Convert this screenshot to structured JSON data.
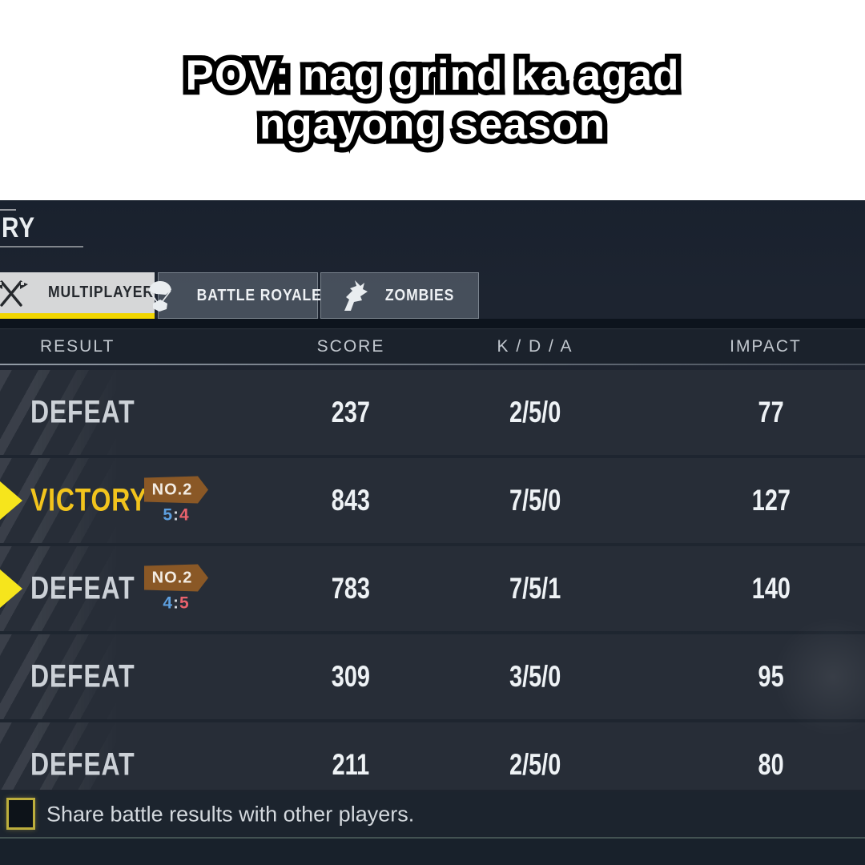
{
  "meme": {
    "line1": "POV: nag grind ka agad",
    "line2": "ngayong season"
  },
  "screen": {
    "partial_title": "RY",
    "tabs": [
      {
        "label": "MULTIPLAYER",
        "icon": "crossed-flags-icon",
        "selected": true
      },
      {
        "label": "BATTLE ROYALE",
        "icon": "parachute-crate-icon",
        "selected": false
      },
      {
        "label": "ZOMBIES",
        "icon": "zombie-hand-icon",
        "selected": false
      }
    ],
    "table": {
      "headers": [
        "RESULT",
        "SCORE",
        "K / D / A",
        "IMPACT"
      ],
      "rows": [
        {
          "result": "DEFEAT",
          "victory": false,
          "marker": false,
          "badge": null,
          "round_left": null,
          "round_right": null,
          "score": "237",
          "kda": "2/5/0",
          "impact": "77"
        },
        {
          "result": "VICTORY",
          "victory": true,
          "marker": true,
          "badge": "NO.2",
          "round_left": "5",
          "round_right": "4",
          "score": "843",
          "kda": "7/5/0",
          "impact": "127"
        },
        {
          "result": "DEFEAT",
          "victory": false,
          "marker": true,
          "badge": "NO.2",
          "round_left": "4",
          "round_right": "5",
          "score": "783",
          "kda": "7/5/1",
          "impact": "140"
        },
        {
          "result": "DEFEAT",
          "victory": false,
          "marker": false,
          "badge": null,
          "round_left": null,
          "round_right": null,
          "score": "309",
          "kda": "3/5/0",
          "impact": "95"
        },
        {
          "result": "DEFEAT",
          "victory": false,
          "marker": false,
          "badge": null,
          "round_left": null,
          "round_right": null,
          "score": "211",
          "kda": "2/5/0",
          "impact": "80"
        }
      ]
    },
    "share": {
      "label": "Share battle results with other players.",
      "checked": false
    },
    "round_score_colon": ":"
  },
  "colors": {
    "victory_text": "#f2c41d",
    "defeat_text": "#ccd1d7",
    "badge_bg": "#8a5826",
    "round_left_blue": "#5d9fdf",
    "round_right_red": "#e8626c",
    "tab_underline": "#f2d600",
    "marker_yellow": "#f6e51c",
    "row_bg": "#272d37",
    "checkbox_border": "#bcae3c"
  }
}
